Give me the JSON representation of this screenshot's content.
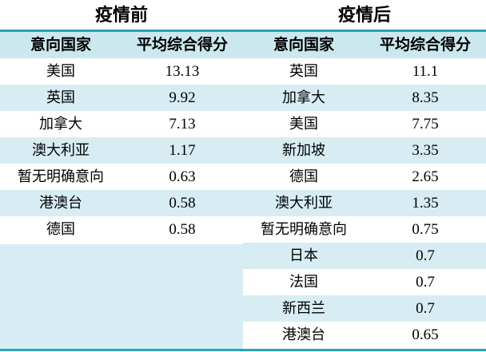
{
  "before_title": "疫情前",
  "after_title": "疫情后",
  "col_country": "意向国家",
  "col_score": "平均综合得分",
  "before": [
    {
      "country": "美国",
      "score": "13.13"
    },
    {
      "country": "英国",
      "score": "9.92"
    },
    {
      "country": "加拿大",
      "score": "7.13"
    },
    {
      "country": "澳大利亚",
      "score": "1.17"
    },
    {
      "country": "暂无明确意向",
      "score": "0.63"
    },
    {
      "country": "港澳台",
      "score": "0.58"
    },
    {
      "country": "德国",
      "score": "0.58"
    }
  ],
  "after": [
    {
      "country": "英国",
      "score": "11.1"
    },
    {
      "country": "加拿大",
      "score": "8.35"
    },
    {
      "country": "美国",
      "score": "7.75"
    },
    {
      "country": "新加坡",
      "score": "3.35"
    },
    {
      "country": "德国",
      "score": "2.65"
    },
    {
      "country": "澳大利亚",
      "score": "1.35"
    },
    {
      "country": "暂无明确意向",
      "score": "0.75"
    },
    {
      "country": "日本",
      "score": "0.7"
    },
    {
      "country": "法国",
      "score": "0.7"
    },
    {
      "country": "新西兰",
      "score": "0.7"
    },
    {
      "country": "港澳台",
      "score": "0.65"
    }
  ]
}
